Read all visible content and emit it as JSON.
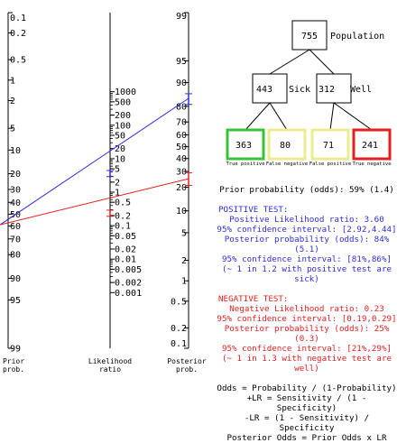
{
  "nomogram": {
    "prior_ticks": [
      "0.1",
      "0.2",
      "0.5",
      "1",
      "2",
      "5",
      "10",
      "20",
      "30",
      "40",
      "50",
      "60",
      "70",
      "80",
      "90",
      "95",
      "99"
    ],
    "prior_values": [
      0.1,
      0.2,
      0.5,
      1,
      2,
      5,
      10,
      20,
      30,
      40,
      50,
      60,
      70,
      80,
      90,
      95,
      99
    ],
    "lr_ticks": [
      "1000",
      "500",
      "200",
      "100",
      "50",
      "20",
      "10",
      "5",
      "2",
      "1",
      "0.5",
      "0.2",
      "0.1",
      "0.05",
      "0.02",
      "0.01",
      "0.005",
      "0.002",
      "0.001"
    ],
    "lr_values": [
      1000,
      500,
      200,
      100,
      50,
      20,
      10,
      5,
      2,
      1,
      0.5,
      0.2,
      0.1,
      0.05,
      0.02,
      0.01,
      0.005,
      0.002,
      0.001
    ],
    "posterior_ticks": [
      "99",
      "95",
      "90",
      "80",
      "70",
      "60",
      "50",
      "40",
      "30",
      "20",
      "10",
      "5",
      "2",
      "1",
      "0.5",
      "0.2",
      "0.1"
    ],
    "posterior_values": [
      99,
      95,
      90,
      80,
      70,
      60,
      50,
      40,
      30,
      20,
      10,
      5,
      2,
      1,
      0.5,
      0.2,
      0.1
    ],
    "labels": {
      "prior": [
        "Prior",
        "prob."
      ],
      "lr": [
        "Likelihood",
        "ratio"
      ],
      "posterior": [
        "Posterior",
        "prob."
      ]
    },
    "prior_prob": 59,
    "positive_line": {
      "color": "#2d2ddc",
      "lr": 3.6,
      "lr_ci": [
        2.92,
        4.44
      ],
      "post": 84,
      "post_ci": [
        81,
        86
      ]
    },
    "negative_line": {
      "color": "#e52020",
      "lr": 0.23,
      "lr_ci": [
        0.19,
        0.29
      ],
      "post": 25,
      "post_ci": [
        21,
        29
      ]
    }
  },
  "tree": {
    "population": {
      "value": "755",
      "label": "Population"
    },
    "sick": {
      "value": "443",
      "label": "Sick"
    },
    "well": {
      "value": "312",
      "label": "Well"
    },
    "leaves": [
      {
        "value": "363",
        "caption": "True positive",
        "border": "#35c435",
        "caption_color": "#2d2ddc"
      },
      {
        "value": "80",
        "caption": "False negative",
        "border": "#ecec8c",
        "caption_color": "#e52020"
      },
      {
        "value": "71",
        "caption": "False positive",
        "border": "#ecec8c",
        "caption_color": "#2d2ddc"
      },
      {
        "value": "241",
        "caption": "True negative",
        "border": "#e52020",
        "caption_color": "#e52020"
      }
    ]
  },
  "info": {
    "prior": "Prior probability (odds): 59% (1.4)",
    "positive": {
      "title": "POSITIVE TEST:",
      "lines": [
        "Positive Likelihood ratio: 3.60",
        "95% confidence interval: [2.92,4.44]",
        "Posterior probability (odds): 84% (5.1)",
        "95% confidence interval: [81%,86%]",
        "(~ 1 in 1.2 with positive test are sick)"
      ]
    },
    "negative": {
      "title": "NEGATIVE TEST:",
      "lines": [
        "Negative Likelihood ratio: 0.23",
        "95% confidence interval: [0.19,0.29]",
        "Posterior probability (odds): 25% (0.3)",
        "95% confidence interval: [21%,29%]",
        "(~ 1 in 1.3 with negative test are well)"
      ]
    },
    "formulas": [
      "Odds = Probability / (1-Probability)",
      "+LR = Sensitivity / (1 - Specificity)",
      "-LR = (1 - Sensitivity) / Specificity",
      "Posterior Odds = Prior Odds x LR"
    ]
  }
}
